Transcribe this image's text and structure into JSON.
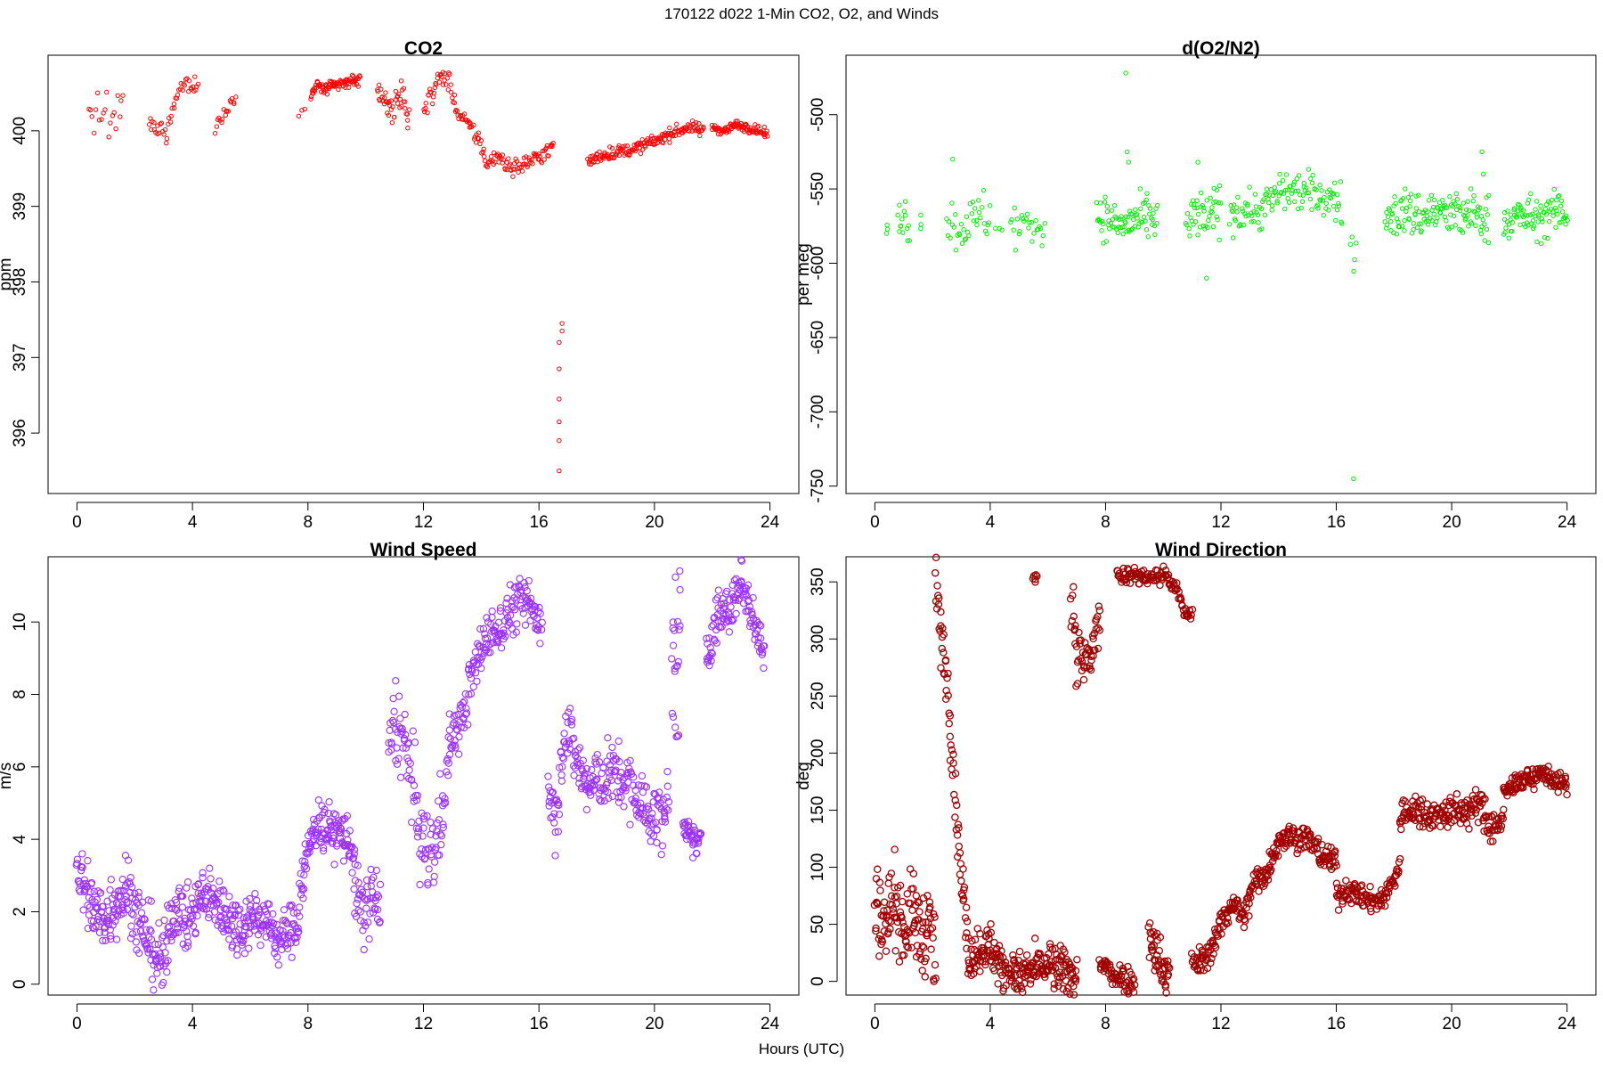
{
  "figure": {
    "title": "170122   d022   1-Min CO2, O2, and Winds",
    "xlabel": "Hours (UTC)"
  },
  "chart_data": [
    {
      "type": "scatter",
      "title": "CO2",
      "xlabel": "",
      "ylabel": "ppm",
      "xlim": [
        -1,
        25
      ],
      "ylim": [
        395.2,
        401.0
      ],
      "xticks": [
        0,
        4,
        8,
        12,
        16,
        20,
        24
      ],
      "yticks": [
        396,
        397,
        398,
        399,
        400
      ],
      "color": "#ff0000",
      "grid": false,
      "segments": [
        {
          "x": [
            0.4,
            0.8,
            1.0,
            1.1,
            1.6
          ],
          "y": [
            400.28,
            400.15,
            400.45,
            400.05,
            400.3
          ],
          "spread": 0.12,
          "n": 20
        },
        {
          "x": [
            2.5,
            2.8,
            2.9,
            3.1,
            3.3,
            3.5,
            3.8,
            4.2
          ],
          "y": [
            400.15,
            399.95,
            400.05,
            399.92,
            400.3,
            400.5,
            400.65,
            400.55
          ],
          "spread": 0.06,
          "n": 45
        },
        {
          "x": [
            4.8,
            5.0,
            5.3,
            5.5
          ],
          "y": [
            400.0,
            400.2,
            400.35,
            400.5
          ],
          "spread": 0.05,
          "n": 18
        },
        {
          "x": [
            7.7,
            7.9
          ],
          "y": [
            400.25,
            400.25
          ],
          "spread": 0.03,
          "n": 3
        },
        {
          "x": [
            8.1,
            8.3,
            8.6,
            9.0,
            9.4,
            9.8
          ],
          "y": [
            400.45,
            400.6,
            400.55,
            400.6,
            400.65,
            400.68
          ],
          "spread": 0.04,
          "n": 90
        },
        {
          "x": [
            10.4,
            10.7,
            11.0,
            11.3,
            11.5
          ],
          "y": [
            400.55,
            400.4,
            400.25,
            400.5,
            400.15
          ],
          "spread": 0.1,
          "n": 45
        },
        {
          "x": [
            12.0,
            12.3,
            12.6,
            12.9,
            13.2,
            13.6,
            14.0,
            14.2,
            14.5,
            14.8,
            15.1,
            15.4,
            16.0,
            16.3,
            16.5
          ],
          "y": [
            400.3,
            400.5,
            400.72,
            400.65,
            400.2,
            400.05,
            399.85,
            399.5,
            399.7,
            399.6,
            399.5,
            399.55,
            399.65,
            399.75,
            399.78
          ],
          "spread": 0.06,
          "n": 150
        },
        {
          "x": [
            16.7,
            16.7,
            16.7,
            16.7,
            16.7,
            16.7,
            16.8,
            16.8
          ],
          "y": [
            395.5,
            395.9,
            396.15,
            396.45,
            396.85,
            397.2,
            397.35,
            397.45
          ],
          "spread": 0.0,
          "n": 8
        },
        {
          "x": [
            17.7,
            18.2,
            18.7,
            19.2,
            19.7,
            20.2,
            20.7,
            21.2,
            21.7
          ],
          "y": [
            399.58,
            399.68,
            399.72,
            399.75,
            399.82,
            399.9,
            399.98,
            400.05,
            400.0
          ],
          "spread": 0.04,
          "n": 170
        },
        {
          "x": [
            22.0,
            22.4,
            22.8,
            23.2,
            23.6,
            23.9
          ],
          "y": [
            400.05,
            400.0,
            400.08,
            400.05,
            400.0,
            399.95
          ],
          "spread": 0.03,
          "n": 100
        }
      ]
    },
    {
      "type": "scatter",
      "title": "d(O2/N2)",
      "xlabel": "",
      "ylabel": "per meg",
      "xlim": [
        -1,
        25
      ],
      "ylim": [
        -755,
        -460
      ],
      "xticks": [
        0,
        4,
        8,
        12,
        16,
        20,
        24
      ],
      "yticks": [
        -750,
        -700,
        -650,
        -600,
        -550,
        -500
      ],
      "color": "#00ee00",
      "grid": false,
      "segments": [
        {
          "x": [
            0.4,
            0.45
          ],
          "y": [
            -578,
            -577
          ],
          "spread": 2,
          "n": 3
        },
        {
          "x": [
            0.8,
            1.0,
            1.2
          ],
          "y": [
            -570,
            -568,
            -572
          ],
          "spread": 7,
          "n": 14
        },
        {
          "x": [
            1.6
          ],
          "y": [
            -573
          ],
          "spread": 3,
          "n": 3
        },
        {
          "x": [
            2.5,
            2.8,
            3.1,
            3.4,
            3.8,
            4.0
          ],
          "y": [
            -568,
            -576,
            -572,
            -574,
            -566,
            -570
          ],
          "spread": 9,
          "n": 38
        },
        {
          "x": [
            4.2,
            4.4
          ],
          "y": [
            -576,
            -576
          ],
          "spread": 2,
          "n": 3
        },
        {
          "x": [
            4.7,
            5.0,
            5.3,
            5.9
          ],
          "y": [
            -571,
            -578,
            -572,
            -576
          ],
          "spread": 8,
          "n": 26
        },
        {
          "x": [
            7.7,
            8.0,
            8.5,
            9.0,
            9.5,
            9.8
          ],
          "y": [
            -566,
            -570,
            -574,
            -572,
            -570,
            -572
          ],
          "spread": 7,
          "n": 80
        },
        {
          "x": [
            10.8,
            11.2,
            11.6,
            12.0
          ],
          "y": [
            -575,
            -568,
            -570,
            -562
          ],
          "spread": 9,
          "n": 45
        },
        {
          "x": [
            12.3,
            12.8,
            13.3,
            13.8,
            14.2,
            14.8,
            15.3,
            15.8,
            16.2
          ],
          "y": [
            -566,
            -563,
            -565,
            -557,
            -550,
            -552,
            -554,
            -556,
            -560
          ],
          "spread": 7,
          "n": 130
        },
        {
          "x": [
            16.5,
            16.7
          ],
          "y": [
            -590,
            -600
          ],
          "spread": 8,
          "n": 5
        },
        {
          "x": [
            17.7,
            18.3,
            18.9,
            19.5,
            20.1,
            20.7,
            21.3
          ],
          "y": [
            -570,
            -565,
            -568,
            -565,
            -568,
            -567,
            -570
          ],
          "spread": 8,
          "n": 140
        },
        {
          "x": [
            21.8,
            22.4,
            23.0,
            23.6,
            24.0
          ],
          "y": [
            -572,
            -568,
            -570,
            -566,
            -565
          ],
          "spread": 7,
          "n": 90
        }
      ],
      "outliers": {
        "x": [
          8.7,
          8.75,
          8.8,
          2.7,
          11.2,
          21.05,
          21.1,
          11.5,
          16.6
        ],
        "y": [
          -472,
          -525,
          -532,
          -530,
          -532,
          -525,
          -540,
          -610,
          -745
        ]
      }
    },
    {
      "type": "scatter",
      "title": "Wind Speed",
      "xlabel": "",
      "ylabel": "m/s",
      "xlim": [
        -1,
        25
      ],
      "ylim": [
        -0.3,
        11.8
      ],
      "xticks": [
        0,
        4,
        8,
        12,
        16,
        20,
        24
      ],
      "yticks": [
        0,
        2,
        4,
        6,
        8,
        10
      ],
      "color": "#9b30ff",
      "grid": false,
      "segments": [
        {
          "x": [
            0,
            0.3,
            0.6,
            1.0,
            1.4,
            1.8,
            2.2,
            2.5,
            2.8,
            3.1
          ],
          "y": [
            3.2,
            2.6,
            2.0,
            1.8,
            2.4,
            2.6,
            1.6,
            1.2,
            0.7,
            0.5
          ],
          "spread": 0.5,
          "n": 190
        },
        {
          "x": [
            3.1,
            3.5,
            3.8,
            4.2,
            4.6,
            5.0,
            5.4,
            5.8
          ],
          "y": [
            1.5,
            2.2,
            1.6,
            2.3,
            2.4,
            2.1,
            1.7,
            1.5
          ],
          "spread": 0.4,
          "n": 160
        },
        {
          "x": [
            5.8,
            6.2,
            6.6,
            7.0,
            7.4,
            7.7
          ],
          "y": [
            1.8,
            1.9,
            1.7,
            1.2,
            1.5,
            1.8
          ],
          "spread": 0.35,
          "n": 110
        },
        {
          "x": [
            7.7,
            8.0,
            8.3,
            8.6,
            9.0,
            9.4,
            9.6
          ],
          "y": [
            2.6,
            3.6,
            4.5,
            4.3,
            4.2,
            4.0,
            3.5
          ],
          "spread": 0.35,
          "n": 120
        },
        {
          "x": [
            9.6,
            9.9,
            10.2,
            10.5
          ],
          "y": [
            2.5,
            1.8,
            2.6,
            2.0
          ],
          "spread": 0.5,
          "n": 50
        },
        {
          "x": [
            10.8,
            11.0,
            11.3,
            11.6,
            11.8,
            12.1,
            12.5,
            12.9
          ],
          "y": [
            6.0,
            7.5,
            6.6,
            5.8,
            4.4,
            3.5,
            4.0,
            6.5
          ],
          "spread": 0.6,
          "n": 110
        },
        {
          "x": [
            12.9,
            13.3,
            13.7,
            14.1,
            14.6,
            15.0,
            15.4,
            15.8,
            16.1
          ],
          "y": [
            6.8,
            7.2,
            8.5,
            9.5,
            9.8,
            10.3,
            10.6,
            10.3,
            10.0
          ],
          "spread": 0.35,
          "n": 170
        },
        {
          "x": [
            16.3,
            16.6,
            16.9,
            17.3,
            17.7,
            18.1,
            18.6,
            19.1,
            19.6,
            20.1,
            20.5
          ],
          "y": [
            5.6,
            4.6,
            7.2,
            6.2,
            5.4,
            5.7,
            5.8,
            5.5,
            4.9,
            4.5,
            5.0
          ],
          "spread": 0.45,
          "n": 230
        },
        {
          "x": [
            20.6,
            20.9
          ],
          "y": [
            8.5,
            10.2
          ],
          "spread": 1.4,
          "n": 22
        },
        {
          "x": [
            21.0,
            21.3,
            21.6
          ],
          "y": [
            4.2,
            4.0,
            3.9
          ],
          "spread": 0.2,
          "n": 40
        },
        {
          "x": [
            21.8,
            22.2,
            22.6,
            23.0,
            23.4,
            23.8
          ],
          "y": [
            9.0,
            10.2,
            10.3,
            11.1,
            10.3,
            9.0
          ],
          "spread": 0.35,
          "n": 120
        }
      ]
    },
    {
      "type": "scatter",
      "title": "Wind Direction",
      "xlabel": "",
      "ylabel": "deg",
      "xlim": [
        -1,
        25
      ],
      "ylim": [
        -12,
        372
      ],
      "xticks": [
        0,
        4,
        8,
        12,
        16,
        20,
        24
      ],
      "yticks": [
        0,
        50,
        100,
        150,
        200,
        250,
        300,
        350
      ],
      "color": "#a00000",
      "grid": false,
      "segments": [
        {
          "x": [
            0,
            0.4,
            0.7,
            1.0,
            1.3,
            1.6,
            1.9,
            2.1
          ],
          "y": [
            65,
            55,
            75,
            45,
            60,
            40,
            50,
            15
          ],
          "spread": 18,
          "n": 130
        },
        {
          "x": [
            2.1,
            2.25,
            2.5,
            2.7,
            2.85,
            3.0,
            3.2
          ],
          "y": [
            355,
            310,
            265,
            200,
            140,
            95,
            40
          ],
          "spread": 12,
          "n": 65
        },
        {
          "x": [
            3.2,
            3.6,
            4.0,
            4.4,
            5.0,
            5.5,
            6.0,
            6.5,
            7.0
          ],
          "y": [
            20,
            28,
            32,
            10,
            4,
            10,
            14,
            9,
            5
          ],
          "spread": 10,
          "n": 230
        },
        {
          "x": [
            5.5,
            5.6
          ],
          "y": [
            355,
            352
          ],
          "spread": 3,
          "n": 6
        },
        {
          "x": [
            6.8,
            7.0,
            7.2,
            7.5,
            7.8
          ],
          "y": [
            340,
            285,
            275,
            285,
            320
          ],
          "spread": 14,
          "n": 55
        },
        {
          "x": [
            7.8,
            8.2,
            8.6,
            9.0
          ],
          "y": [
            15,
            8,
            3,
            1
          ],
          "spread": 6,
          "n": 60
        },
        {
          "x": [
            8.4,
            8.8,
            9.2,
            9.6,
            10.1,
            10.5,
            10.8,
            11.0
          ],
          "y": [
            357,
            356,
            355,
            354,
            356,
            340,
            320,
            325
          ],
          "spread": 4,
          "n": 110
        },
        {
          "x": [
            9.5,
            9.9,
            10.2
          ],
          "y": [
            35,
            18,
            5
          ],
          "spread": 10,
          "n": 45
        },
        {
          "x": [
            11.0,
            11.5,
            12.0,
            12.4,
            12.8,
            13.2,
            13.6,
            14.0,
            14.4,
            15.0,
            15.5,
            16.0
          ],
          "y": [
            15,
            20,
            50,
            70,
            55,
            90,
            95,
            125,
            128,
            125,
            110,
            105
          ],
          "spread": 6,
          "n": 260
        },
        {
          "x": [
            16.0,
            16.5,
            17.0,
            17.5,
            17.8,
            18.2
          ],
          "y": [
            75,
            80,
            72,
            70,
            80,
            100
          ],
          "spread": 5,
          "n": 110
        },
        {
          "x": [
            18.2,
            18.6,
            19.0,
            19.5,
            20.0,
            20.5,
            21.0,
            21.3,
            21.8
          ],
          "y": [
            145,
            150,
            148,
            145,
            150,
            148,
            155,
            135,
            140
          ],
          "spread": 7,
          "n": 180
        },
        {
          "x": [
            21.8,
            22.3,
            22.8,
            23.2,
            23.6,
            24.0
          ],
          "y": [
            165,
            175,
            178,
            183,
            175,
            172
          ],
          "spread": 4,
          "n": 120
        }
      ]
    }
  ]
}
